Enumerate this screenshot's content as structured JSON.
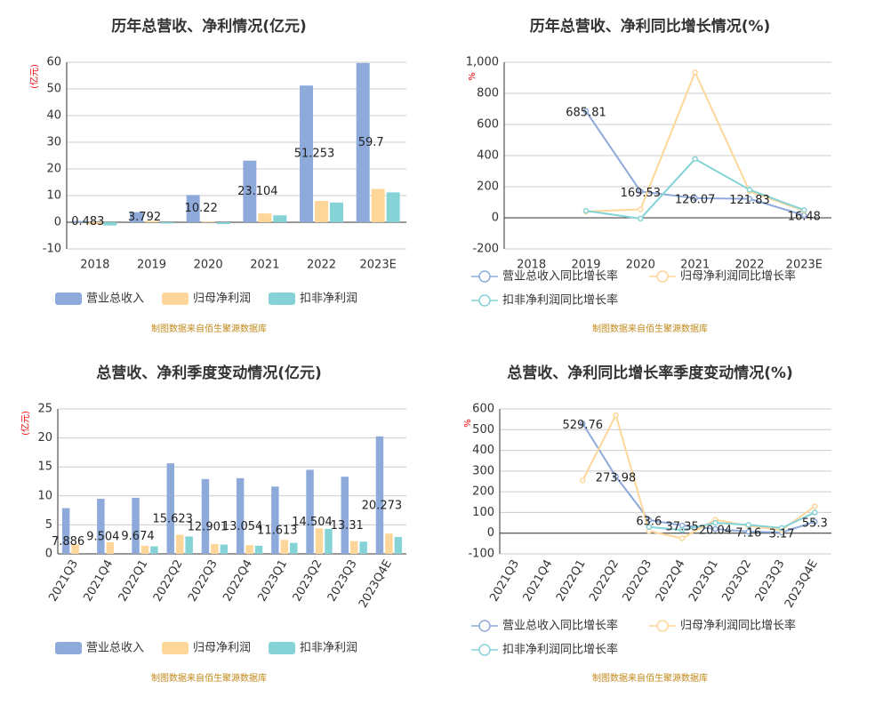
{
  "chart_data": [
    {
      "type": "bar",
      "title": "历年总营收、净利情况(亿元)",
      "y_label": "(亿元)",
      "source": "制图数据来自佰生聚源数据库",
      "categories": [
        "2018",
        "2019",
        "2020",
        "2021",
        "2022",
        "2023E"
      ],
      "series": [
        {
          "name": "营业总收入",
          "color": "#8eaadb",
          "values": [
            0.483,
            3.792,
            10.22,
            23.104,
            51.253,
            59.7
          ]
        },
        {
          "name": "归母净利润",
          "color": "#ffd699",
          "values": [
            -0.8,
            0.5,
            0.3,
            3.3,
            8.0,
            12.5
          ]
        },
        {
          "name": "扣非净利润",
          "color": "#85d3d7",
          "values": [
            -1.2,
            -0.5,
            -0.7,
            2.6,
            7.4,
            11.2
          ]
        }
      ],
      "ylim": [
        -10,
        60
      ],
      "yticks": [
        -10,
        0,
        10,
        20,
        30,
        40,
        50,
        60
      ],
      "grid": true,
      "legend": "bottom",
      "rotate_x_labels": false
    },
    {
      "type": "line",
      "title": "历年总营收、净利同比增长情况(%)",
      "y_label": "%",
      "source": "制图数据来自佰生聚源数据库",
      "categories": [
        "2018",
        "2019",
        "2020",
        "2021",
        "2022",
        "2023E"
      ],
      "series": [
        {
          "name": "营业总收入同比增长率",
          "color": "#8eaadb",
          "values": [
            null,
            685.81,
            169.53,
            126.07,
            121.83,
            16.48
          ]
        },
        {
          "name": "归母净利润同比增长率",
          "color": "#ffd699",
          "values": [
            null,
            40,
            55,
            935,
            170,
            45
          ]
        },
        {
          "name": "扣非净利润同比增长率",
          "color": "#85d3d7",
          "values": [
            null,
            45,
            -5,
            378,
            180,
            50
          ]
        }
      ],
      "ylim": [
        -200,
        1000
      ],
      "yticks": [
        -200,
        0,
        200,
        400,
        600,
        800,
        {
          "value": 1000,
          "label": "1,000"
        }
      ],
      "grid": true,
      "legend": "bottom",
      "rotate_x_labels": false
    },
    {
      "type": "bar",
      "title": "总营收、净利季度变动情况(亿元)",
      "y_label": "(亿元)",
      "source": "制图数据来自佰生聚源数据库",
      "categories": [
        "2021Q3",
        "2021Q4",
        "2022Q1",
        "2022Q2",
        "2022Q3",
        "2022Q4",
        "2023Q1",
        "2023Q2",
        "2023Q3",
        "2023Q4E"
      ],
      "series": [
        {
          "name": "营业总收入",
          "color": "#8eaadb",
          "values": [
            7.886,
            9.504,
            9.674,
            15.623,
            12.901,
            13.054,
            11.613,
            14.504,
            13.31,
            20.273
          ]
        },
        {
          "name": "归母净利润",
          "color": "#ffd699",
          "values": [
            1.6,
            2.0,
            1.4,
            3.3,
            1.7,
            1.5,
            2.4,
            4.4,
            2.2,
            3.5
          ]
        },
        {
          "name": "扣非净利润",
          "color": "#85d3d7",
          "values": [
            null,
            null,
            1.3,
            3.0,
            1.6,
            1.4,
            1.9,
            4.3,
            2.1,
            2.9
          ]
        }
      ],
      "ylim": [
        0,
        25
      ],
      "yticks": [
        0,
        5,
        10,
        15,
        20,
        25
      ],
      "grid": true,
      "legend": "bottom",
      "rotate_x_labels": true
    },
    {
      "type": "line",
      "title": "总营收、净利同比增长率季度变动情况(%)",
      "y_label": "%",
      "source": "制图数据来自佰生聚源数据库",
      "categories": [
        "2021Q3",
        "2021Q4",
        "2022Q1",
        "2022Q2",
        "2022Q3",
        "2022Q4",
        "2023Q1",
        "2023Q2",
        "2023Q3",
        "2023Q4E"
      ],
      "series": [
        {
          "name": "营业总收入同比增长率",
          "color": "#8eaadb",
          "values": [
            null,
            null,
            529.76,
            273.98,
            63.6,
            37.35,
            20.04,
            7.16,
            3.17,
            55.3
          ]
        },
        {
          "name": "归母净利润同比增长率",
          "color": "#ffd699",
          "values": [
            null,
            null,
            255,
            570,
            10,
            -25,
            65,
            35,
            15,
            130
          ]
        },
        {
          "name": "扣非净利润同比增长率",
          "color": "#85d3d7",
          "values": [
            null,
            null,
            null,
            null,
            30,
            15,
            50,
            40,
            25,
            100
          ]
        }
      ],
      "ylim": [
        -100,
        600
      ],
      "yticks": [
        -100,
        0,
        100,
        200,
        300,
        400,
        500,
        600
      ],
      "grid": true,
      "legend": "bottom",
      "rotate_x_labels": true
    }
  ]
}
